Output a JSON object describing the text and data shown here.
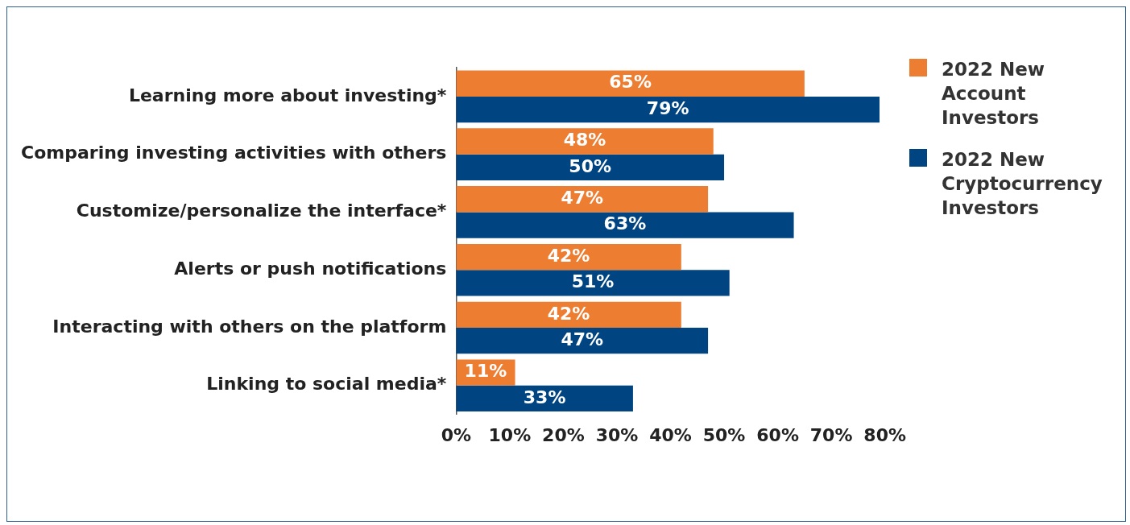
{
  "chart_data": {
    "type": "bar",
    "orientation": "horizontal",
    "categories": [
      "Learning more about investing*",
      "Comparing investing activities with others",
      "Customize/personalize the interface*",
      "Alerts or push notifications",
      "Interacting with others on the platform",
      "Linking to social media*"
    ],
    "series": [
      {
        "name": "2022 New Account Investors",
        "color": "#ed7d31",
        "values": [
          65,
          48,
          47,
          42,
          42,
          11
        ],
        "value_labels": [
          "65%",
          "48%",
          "47%",
          "42%",
          "42%",
          "11%"
        ]
      },
      {
        "name": "2022 New Cryptocurrency Investors",
        "color": "#004481",
        "values": [
          79,
          50,
          63,
          51,
          47,
          33
        ],
        "value_labels": [
          "79%",
          "50%",
          "63%",
          "51%",
          "47%",
          "33%"
        ]
      }
    ],
    "xlim": [
      0,
      80
    ],
    "xticks": [
      {
        "value": 0,
        "label": "0%"
      },
      {
        "value": 10,
        "label": "10%"
      },
      {
        "value": 20,
        "label": "20%"
      },
      {
        "value": 30,
        "label": "30%"
      },
      {
        "value": 40,
        "label": "40%"
      },
      {
        "value": 50,
        "label": "50%"
      },
      {
        "value": 60,
        "label": "60%"
      },
      {
        "value": 70,
        "label": "70%"
      },
      {
        "value": 80,
        "label": "80%"
      }
    ],
    "grid": false,
    "legend": "top right"
  }
}
